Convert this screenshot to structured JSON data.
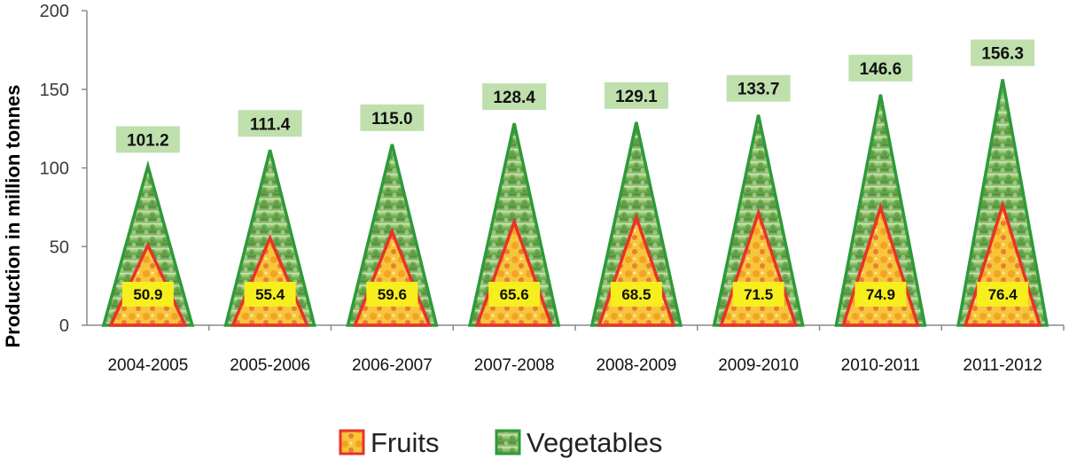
{
  "chart_data": {
    "type": "bar",
    "bar_shape": "triangle",
    "categories": [
      "2004-2005",
      "2005-2006",
      "2006-2007",
      "2007-2008",
      "2008-2009",
      "2009-2010",
      "2010-2011",
      "2011-2012"
    ],
    "series": [
      {
        "name": "Fruits",
        "values": [
          50.9,
          55.4,
          59.6,
          65.6,
          68.5,
          71.5,
          74.9,
          76.4
        ]
      },
      {
        "name": "Vegetables",
        "values": [
          101.2,
          111.4,
          115.0,
          128.4,
          129.1,
          133.7,
          146.6,
          156.3
        ]
      }
    ],
    "data_labels": {
      "Fruits": [
        "50.9",
        "55.4",
        "59.6",
        "65.6",
        "68.5",
        "71.5",
        "74.9",
        "76.4"
      ],
      "Vegetables": [
        "101.2",
        "111.4",
        "115.0",
        "128.4",
        "129.1",
        "133.7",
        "146.6",
        "156.3"
      ]
    },
    "ylabel": "Production in million tonnes",
    "xlabel": "",
    "ylim": [
      0,
      200
    ],
    "yticks": [
      0,
      50,
      100,
      150,
      200
    ],
    "grid": false,
    "legend": "bottom-center",
    "colors": {
      "fruits_outline": "#e8322a",
      "fruits_fill": "#f6a21d",
      "vegetables_outline": "#2e9a3a",
      "vegetables_fill": "#7fb85a",
      "fruit_label_bg": "#f7ee1e",
      "veg_label_bg": "#bfe0ad"
    }
  }
}
